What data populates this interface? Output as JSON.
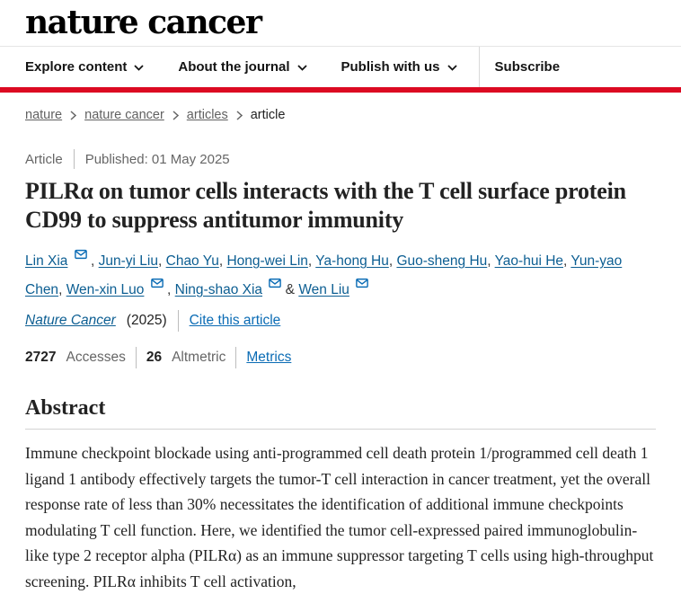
{
  "header": {
    "logo": "nature cancer",
    "nav": [
      {
        "label": "Explore content",
        "dropdown": true
      },
      {
        "label": "About the journal",
        "dropdown": true
      },
      {
        "label": "Publish with us",
        "dropdown": true
      },
      {
        "label": "Subscribe",
        "dropdown": false
      }
    ]
  },
  "breadcrumb": {
    "links": [
      "nature",
      "nature cancer",
      "articles"
    ],
    "current": "article"
  },
  "meta": {
    "type": "Article",
    "published": "Published: 01 May 2025"
  },
  "title": "PILRα on tumor cells interacts with the T cell surface protein CD99 to suppress antitumor immunity",
  "authors": [
    {
      "name": "Lin Xia",
      "email": true
    },
    {
      "name": "Jun-yi Liu",
      "email": false
    },
    {
      "name": "Chao Yu",
      "email": false
    },
    {
      "name": "Hong-wei Lin",
      "email": false
    },
    {
      "name": "Ya-hong Hu",
      "email": false
    },
    {
      "name": "Guo-sheng Hu",
      "email": false
    },
    {
      "name": "Yao-hui He",
      "email": false
    },
    {
      "name": "Yun-yao Chen",
      "email": false
    },
    {
      "name": "Wen-xin Luo",
      "email": true
    },
    {
      "name": "Ning-shao Xia",
      "email": true
    },
    {
      "name": "Wen Liu",
      "email": true
    }
  ],
  "journal_line": {
    "journal": "Nature Cancer",
    "year": "(2025)",
    "cite": "Cite this article"
  },
  "metrics": {
    "accesses_value": "2727",
    "accesses_label": "Accesses",
    "altmetric_value": "26",
    "altmetric_label": "Altmetric",
    "link": "Metrics"
  },
  "abstract": {
    "heading": "Abstract",
    "text": "Immune checkpoint blockade using anti-programmed cell death protein 1/programmed cell death 1 ligand 1 antibody effectively targets the tumor-T cell interaction in cancer treatment, yet the overall response rate of less than 30% necessitates the identification of additional immune checkpoints modulating T cell function. Here, we identified the tumor cell-expressed paired immunoglobulin-like type 2 receptor alpha (PILRα) as an immune suppressor targeting T cells using high-throughput screening. PILRα inhibits T cell activation,"
  },
  "colors": {
    "accent_red": "#dc0a22",
    "link_blue": "#0b6cb5",
    "author_link_blue": "#0c5e92"
  }
}
